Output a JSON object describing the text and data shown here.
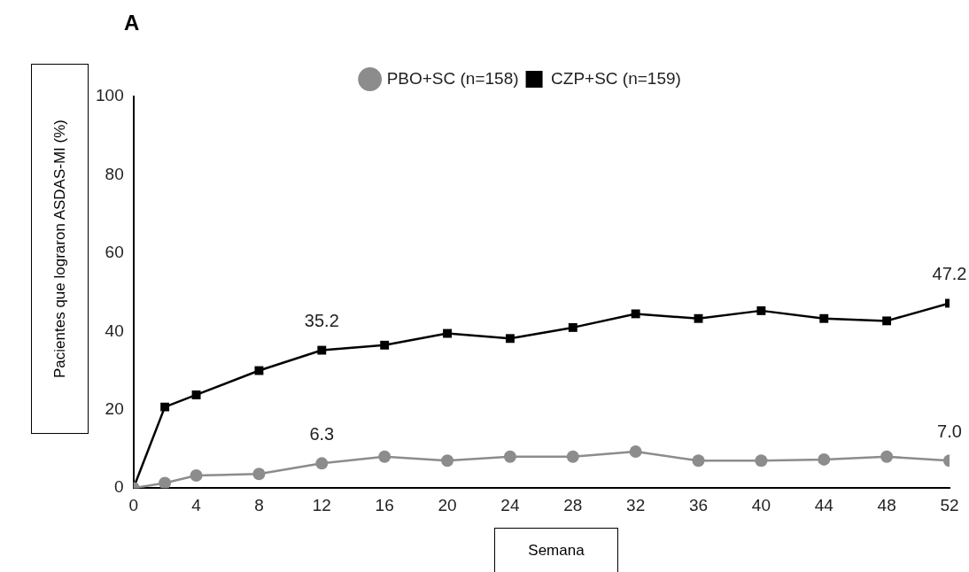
{
  "chart_data": {
    "type": "line",
    "title": "A",
    "xlabel": "Semana",
    "ylabel": "Pacientes que lograron ASDAS-MI (%)",
    "x": [
      0,
      2,
      4,
      8,
      12,
      16,
      20,
      24,
      28,
      32,
      36,
      40,
      44,
      48,
      52
    ],
    "xlim": [
      0,
      52
    ],
    "xticks": [
      0,
      4,
      8,
      12,
      16,
      20,
      24,
      28,
      32,
      36,
      40,
      44,
      48,
      52
    ],
    "ylim": [
      0,
      100
    ],
    "yticks": [
      0,
      20,
      40,
      60,
      80,
      100
    ],
    "grid": false,
    "legend": "top",
    "series": [
      {
        "name": "PBO+SC (n=158)",
        "color": "#8c8c8c",
        "marker": "circle",
        "values": [
          0,
          1.3,
          3.2,
          3.6,
          6.3,
          8,
          7,
          8,
          8,
          9.3,
          7,
          7,
          7.3,
          8,
          7.0
        ],
        "value_labels": [
          null,
          null,
          null,
          null,
          "6.3",
          null,
          null,
          null,
          null,
          null,
          null,
          null,
          null,
          null,
          "7.0"
        ]
      },
      {
        "name": "CZP+SC (n=159)",
        "color": "#000000",
        "marker": "square",
        "values": [
          0,
          20.7,
          23.8,
          30,
          35.2,
          36.5,
          39.5,
          38.2,
          41,
          44.5,
          43.3,
          45.3,
          43.3,
          42.7,
          47.2
        ],
        "value_labels": [
          null,
          null,
          null,
          null,
          "35.2",
          null,
          null,
          null,
          null,
          null,
          null,
          null,
          null,
          null,
          "47.2"
        ]
      }
    ]
  }
}
